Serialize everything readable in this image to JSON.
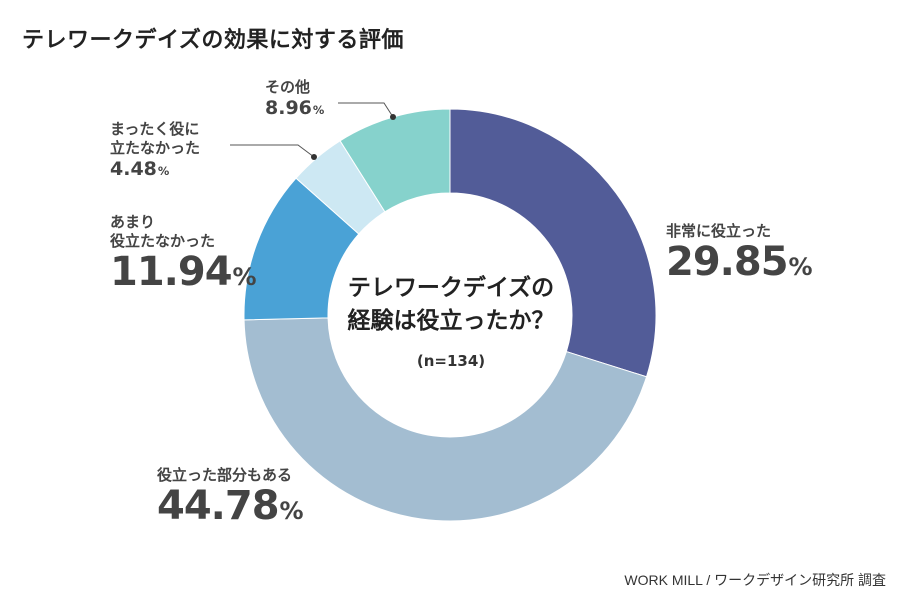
{
  "title": "テレワークデイズの効果に対する評価",
  "center": {
    "question_line1": "テレワークデイズの",
    "question_line2": "経験は役立ったか？",
    "sample": "(n=134)"
  },
  "source": "WORK MILL / ワークデザイン研究所 調査",
  "chart_data": {
    "type": "pie",
    "donut": true,
    "title": "テレワークデイズの効果に対する評価",
    "unit": "%",
    "categories": [
      "非常に役立った",
      "役立った部分もある",
      "あまり役立たなかった",
      "まったく役に立たなかった",
      "その他"
    ],
    "values": [
      29.85,
      44.78,
      11.94,
      4.48,
      8.96
    ],
    "colors": [
      "#525c98",
      "#a3bdd1",
      "#4aa2d6",
      "#cde8f3",
      "#86d2cc"
    ]
  },
  "labels": {
    "very_useful": {
      "name": "非常に役立った",
      "value": "29.85"
    },
    "partly_useful": {
      "name": "役立った部分もある",
      "value": "44.78"
    },
    "not_very_useful": {
      "name_line1": "あまり",
      "name_line2": "役立たなかった",
      "value": "11.94"
    },
    "not_useful_at_all": {
      "name_line1": "まったく役に",
      "name_line2": "立たなかった",
      "value": "4.48"
    },
    "other": {
      "name": "その他",
      "value": "8.96"
    },
    "unit": "%"
  }
}
